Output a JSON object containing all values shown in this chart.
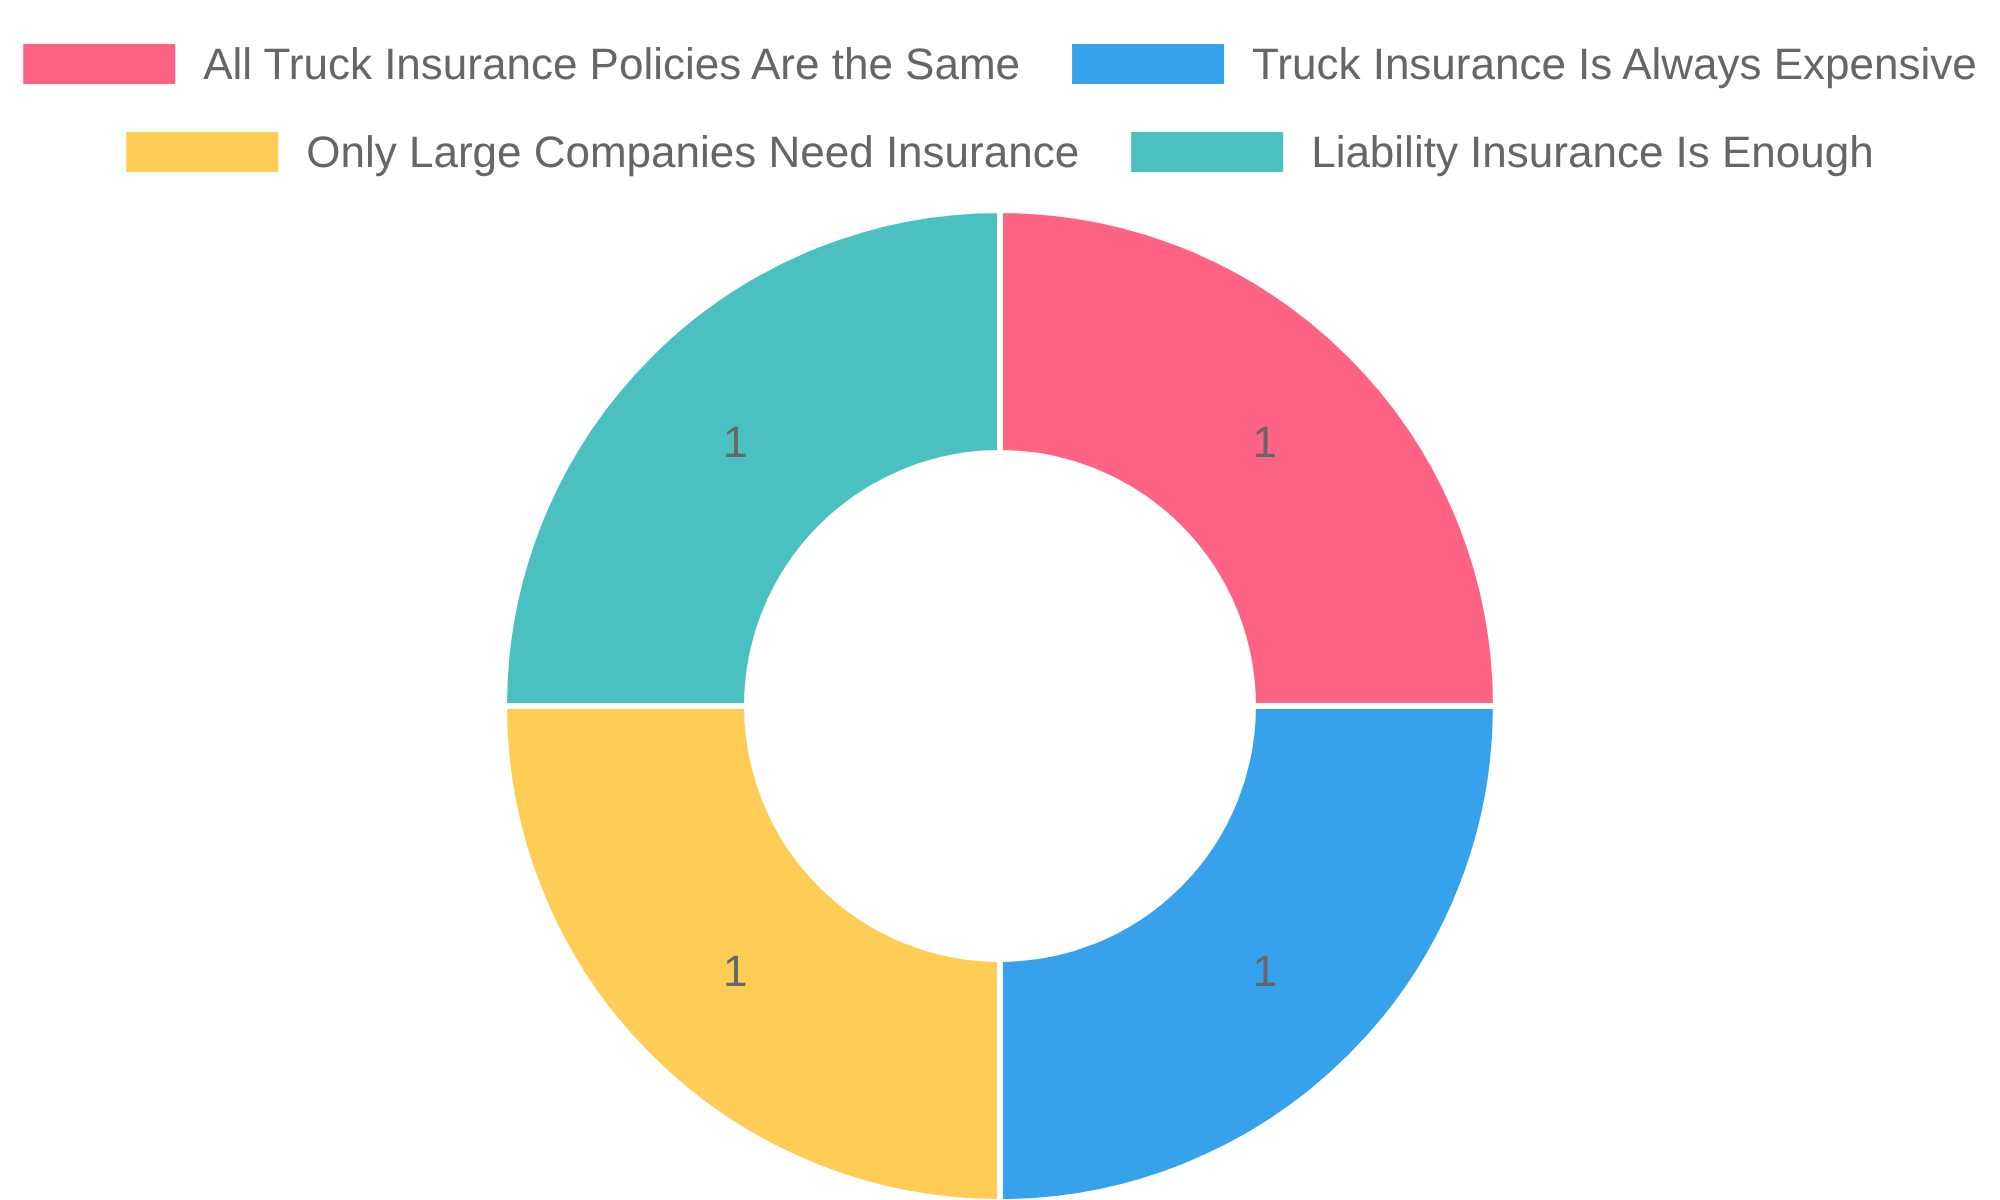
{
  "chart_data": {
    "type": "donut",
    "categories": [
      "All Truck Insurance Policies Are the Same",
      "Truck Insurance Is Always Expensive",
      "Only Large Companies Need Insurance",
      "Liability Insurance Is Enough"
    ],
    "values": [
      1,
      1,
      1,
      1
    ],
    "colors": [
      "#ff6384",
      "#36a2eb",
      "#ffcd56",
      "#4bc0c0"
    ],
    "data_labels": true,
    "legend": "top"
  }
}
